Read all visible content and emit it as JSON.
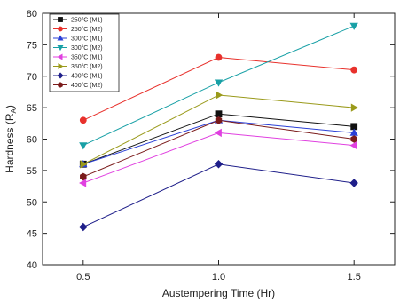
{
  "chart_data": {
    "type": "line",
    "title": "",
    "xlabel": "Austempering Time (Hr)",
    "ylabel_main": "Hardness (R",
    "ylabel_sub": "A",
    "ylabel_close": ")",
    "xlim": [
      0.35,
      1.65
    ],
    "ylim": [
      40,
      80
    ],
    "x_ticks": [
      0.5,
      1.0,
      1.5
    ],
    "x_tick_labels": [
      "0.5",
      "1.0",
      "1.5"
    ],
    "y_ticks": [
      40,
      45,
      50,
      55,
      60,
      65,
      70,
      75,
      80
    ],
    "y_tick_labels": [
      "40",
      "45",
      "50",
      "55",
      "60",
      "65",
      "70",
      "75",
      "80"
    ],
    "legend_position": "top-left",
    "grid": false,
    "x": [
      0.5,
      1.0,
      1.5
    ],
    "series": [
      {
        "name": "250°C (M1)",
        "name_main": "250",
        "name_tail": "C (M1)",
        "color": "#111111",
        "marker": "square",
        "values": [
          56,
          64,
          62
        ]
      },
      {
        "name": "250°C (M2)",
        "name_main": "250",
        "name_tail": "C (M2)",
        "color": "#e8312c",
        "marker": "circle",
        "values": [
          63,
          73,
          71
        ]
      },
      {
        "name": "300°C (M1)",
        "name_main": "300",
        "name_tail": "C (M1)",
        "color": "#2a3fd6",
        "marker": "triangle-up",
        "values": [
          56,
          63,
          61
        ]
      },
      {
        "name": "300°C (M2)",
        "name_main": "300",
        "name_tail": "C (M2)",
        "color": "#18a0a6",
        "marker": "triangle-down",
        "values": [
          59,
          69,
          78
        ]
      },
      {
        "name": "350°C (M1)",
        "name_main": "350",
        "name_tail": "C (M1)",
        "color": "#e040e0",
        "marker": "triangle-left",
        "values": [
          53,
          61,
          59
        ]
      },
      {
        "name": "350°C (M2)",
        "name_main": "350",
        "name_tail": "C (M2)",
        "color": "#9a9a1a",
        "marker": "triangle-right",
        "values": [
          56,
          67,
          65
        ]
      },
      {
        "name": "400°C (M1)",
        "name_main": "400",
        "name_tail": "C (M1)",
        "color": "#1f1f8a",
        "marker": "diamond",
        "values": [
          46,
          56,
          53
        ]
      },
      {
        "name": "400°C (M2)",
        "name_main": "400",
        "name_tail": "C (M2)",
        "color": "#7a1a1a",
        "marker": "hexagon",
        "values": [
          54,
          63,
          60
        ]
      }
    ]
  }
}
